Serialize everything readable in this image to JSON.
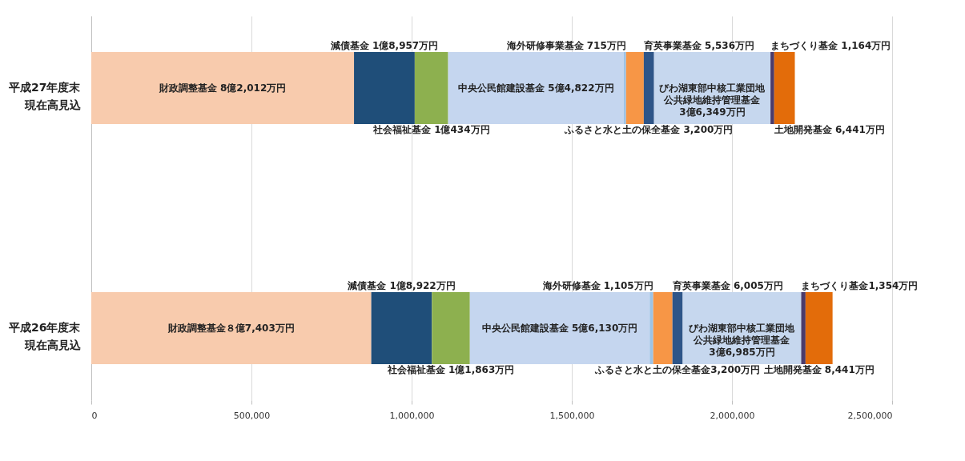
{
  "chart_data": {
    "type": "bar",
    "orientation": "horizontal",
    "stacked": true,
    "grid": "x",
    "legend": false,
    "categories": [
      "平成27年度末現在高見込",
      "平成26年度末現在高見込"
    ],
    "xlim": [
      0,
      2500000
    ],
    "xticks": [
      0,
      {
        "value": 500000,
        "label": "500,000"
      },
      {
        "value": 1000000,
        "label": "1,000,000"
      },
      {
        "value": 1500000,
        "label": "1,500,000"
      },
      {
        "value": 2000000,
        "label": "2,000,000"
      },
      {
        "value": 2500000,
        "label": "2,500,000"
      }
    ],
    "series": [
      {
        "color": "#f8cbad",
        "values": [
          820120,
          874030
        ],
        "value_labels": [
          "財政調整基金 8億2,012万円",
          "財政調整基金８億7,403万円"
        ]
      },
      {
        "color": "#1f4e79",
        "values": [
          189570,
          189220
        ],
        "value_labels": [
          "減債基金 1億8,957万円",
          "減債基金 1億8,922万円"
        ]
      },
      {
        "color": "#8db04f",
        "values": [
          104340,
          118630
        ],
        "value_labels": [
          "社会福祉基金 1億434万円",
          "社会福祉基金 1億1,863万円"
        ]
      },
      {
        "color": "#c5d6ef",
        "values": [
          548220,
          561300
        ],
        "value_labels": [
          "中央公民館建設基金 5億4,822万円",
          "中央公民館建設基金 5億6,130万円"
        ]
      },
      {
        "color": "#9dc3e6",
        "values": [
          7150,
          11050
        ],
        "value_labels": [
          "海外研修事業基金 715万円",
          "海外研修基金 1,105万円"
        ]
      },
      {
        "color": "#f79646",
        "values": [
          55360,
          60050
        ],
        "value_labels": [
          "育英事業基金 5,536万円",
          "育英事業基金 6,005万円"
        ]
      },
      {
        "color": "#2e5588",
        "values": [
          32000,
          32000
        ],
        "value_labels": [
          "ふるさと水と土の保全基金 3,200万円",
          "ふるさと水と土の保全基金3,200万円"
        ]
      },
      {
        "color": "#c6d7ee",
        "values": [
          363490,
          369850
        ],
        "value_labels": [
          "びわ湖東部中核工業団地公共緑地維持管理基金 3億6,349万円",
          "びわ湖東部中核工業団地公共緑地維持管理基金 3億6,985万円"
        ]
      },
      {
        "color": "#4b3b6b",
        "values": [
          11640,
          13540
        ],
        "value_labels": [
          "まちづくり基金 1,164万円",
          "まちづくり基金1,354万円"
        ]
      },
      {
        "color": "#e36c0a",
        "values": [
          64410,
          84410
        ],
        "value_labels": [
          "土地開発基金 6,441万円",
          "土地開発基金 8,441万円"
        ]
      }
    ]
  }
}
